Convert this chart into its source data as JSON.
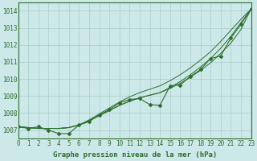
{
  "title": "Graphe pression niveau de la mer (hPa)",
  "bg_color": "#cce8e8",
  "grid_color": "#aacccc",
  "line_color": "#2d6e2d",
  "xlim": [
    0,
    23
  ],
  "ylim": [
    1006.5,
    1014.5
  ],
  "yticks": [
    1007,
    1008,
    1009,
    1010,
    1011,
    1012,
    1013,
    1014
  ],
  "xticks": [
    0,
    1,
    2,
    3,
    4,
    5,
    6,
    7,
    8,
    9,
    10,
    11,
    12,
    13,
    14,
    15,
    16,
    17,
    18,
    19,
    20,
    21,
    22,
    23
  ],
  "smooth_lines": [
    [
      1007.2,
      1007.15,
      1007.1,
      1007.1,
      1007.1,
      1007.15,
      1007.3,
      1007.55,
      1007.85,
      1008.15,
      1008.45,
      1008.7,
      1008.9,
      1009.05,
      1009.2,
      1009.45,
      1009.75,
      1010.1,
      1010.5,
      1010.95,
      1011.5,
      1012.1,
      1012.9,
      1014.1
    ],
    [
      1007.2,
      1007.15,
      1007.1,
      1007.1,
      1007.1,
      1007.15,
      1007.3,
      1007.55,
      1007.85,
      1008.15,
      1008.45,
      1008.7,
      1008.9,
      1009.05,
      1009.2,
      1009.5,
      1009.85,
      1010.25,
      1010.7,
      1011.2,
      1011.8,
      1012.5,
      1013.3,
      1014.1
    ],
    [
      1007.2,
      1007.15,
      1007.1,
      1007.1,
      1007.1,
      1007.15,
      1007.3,
      1007.6,
      1007.95,
      1008.3,
      1008.65,
      1008.95,
      1009.2,
      1009.4,
      1009.6,
      1009.9,
      1010.25,
      1010.65,
      1011.1,
      1011.6,
      1012.2,
      1012.85,
      1013.5,
      1014.1
    ]
  ],
  "marker_line": [
    1007.2,
    1007.1,
    1007.2,
    1007.0,
    1006.8,
    1006.8,
    1007.3,
    1007.5,
    1007.9,
    1008.2,
    1008.6,
    1008.8,
    1008.85,
    1008.5,
    1008.45,
    1009.6,
    1009.65,
    1010.15,
    1010.55,
    1011.2,
    1011.35,
    1012.4,
    1013.2,
    1014.1
  ],
  "xlabel_fontsize": 6.5,
  "tick_fontsize": 5.5
}
